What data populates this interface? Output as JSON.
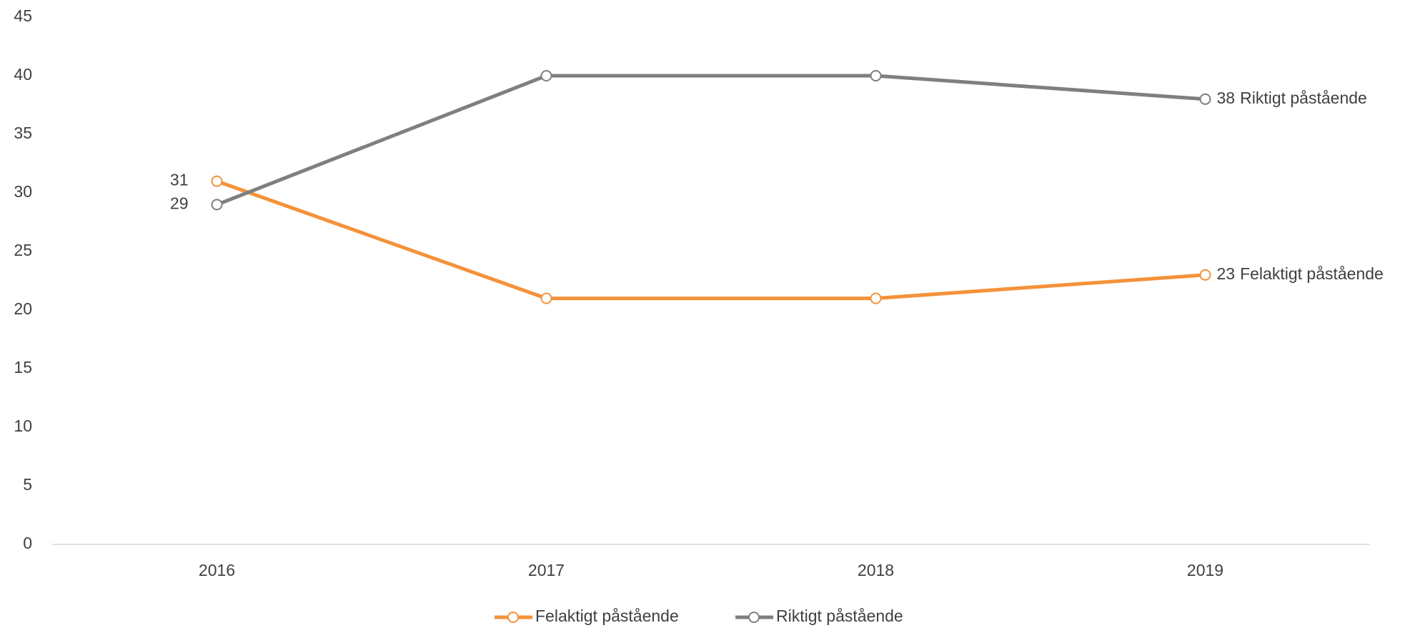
{
  "chart_data": {
    "type": "line",
    "categories": [
      "2016",
      "2017",
      "2018",
      "2019"
    ],
    "series": [
      {
        "name": "Felaktigt påstående",
        "color": "#f4923a",
        "values": [
          31,
          21,
          21,
          23
        ]
      },
      {
        "name": "Riktigt påstående",
        "color": "#7f7f7f",
        "values": [
          29,
          40,
          40,
          38
        ]
      }
    ],
    "ylim": [
      0,
      45
    ],
    "yticks": [
      0,
      5,
      10,
      15,
      20,
      25,
      30,
      35,
      40,
      45
    ],
    "grid": false,
    "legend": "bottom"
  }
}
